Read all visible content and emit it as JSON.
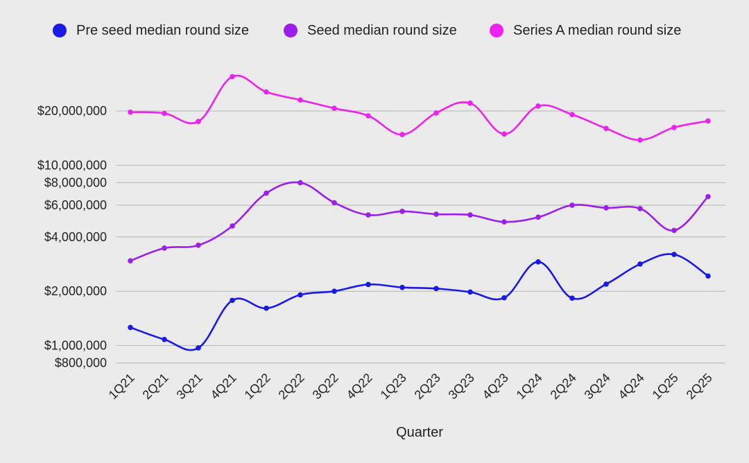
{
  "chart_data": {
    "type": "line",
    "xlabel": "Quarter",
    "ylabel": "",
    "y_scale": "log",
    "ylim": [
      700000,
      34000000
    ],
    "grid": true,
    "legend_position": "top",
    "categories": [
      "1Q21",
      "2Q21",
      "3Q21",
      "4Q21",
      "1Q22",
      "2Q22",
      "3Q22",
      "4Q22",
      "1Q23",
      "2Q23",
      "3Q23",
      "4Q23",
      "1Q24",
      "2Q24",
      "3Q24",
      "4Q24",
      "1Q25",
      "2Q25"
    ],
    "y_ticks": [
      {
        "value": 800000,
        "label": "$800,000"
      },
      {
        "value": 1000000,
        "label": "$1,000,000"
      },
      {
        "value": 2000000,
        "label": "$2,000,000"
      },
      {
        "value": 4000000,
        "label": "$4,000,000"
      },
      {
        "value": 6000000,
        "label": "$6,000,000"
      },
      {
        "value": 8000000,
        "label": "$8,000,000"
      },
      {
        "value": 10000000,
        "label": "$10,000,000"
      },
      {
        "value": 20000000,
        "label": "$20,000,000"
      }
    ],
    "series": [
      {
        "name": "Pre seed median round size",
        "color": "#1a1ae6",
        "values": [
          1260000,
          1080000,
          970000,
          1780000,
          1610000,
          1910000,
          2000000,
          2180000,
          2100000,
          2070000,
          1980000,
          1840000,
          2910000,
          1830000,
          2190000,
          2830000,
          3200000,
          2430000
        ]
      },
      {
        "name": "Seed median round size",
        "color": "#9b1fe8",
        "values": [
          2950000,
          3470000,
          3600000,
          4600000,
          7000000,
          8000000,
          6200000,
          5300000,
          5550000,
          5350000,
          5300000,
          4850000,
          5150000,
          6000000,
          5800000,
          5750000,
          4350000,
          6700000
        ]
      },
      {
        "name": "Series A median round size",
        "color": "#ee22ee",
        "values": [
          19700000,
          19400000,
          17500000,
          31000000,
          25500000,
          23000000,
          20700000,
          18800000,
          14800000,
          19500000,
          22100000,
          14900000,
          21300000,
          19100000,
          16000000,
          13800000,
          16200000,
          17600000
        ]
      }
    ]
  }
}
